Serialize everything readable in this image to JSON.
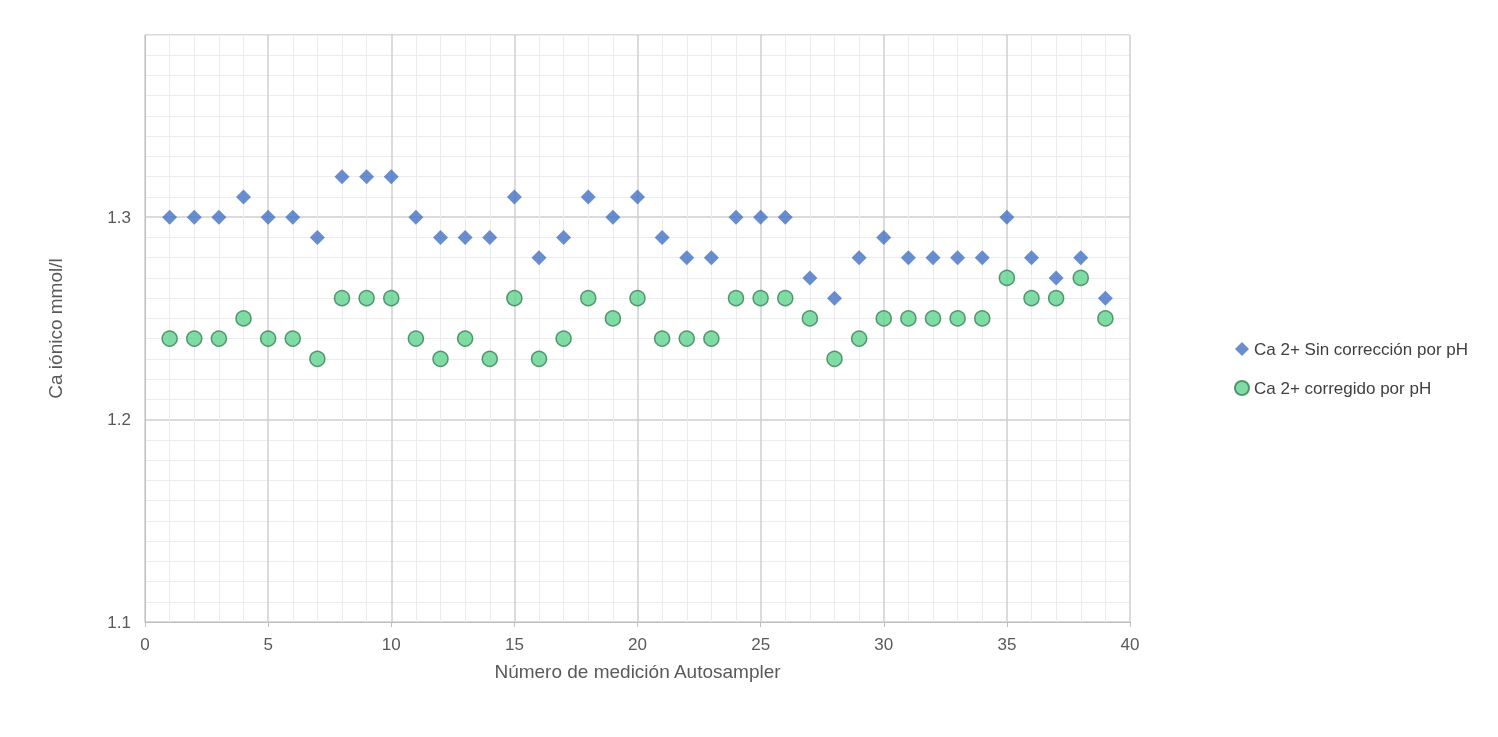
{
  "chart_data": {
    "type": "scatter",
    "xlabel": "Número de medición Autosampler",
    "ylabel": "Ca iónico mmol/l",
    "x": [
      1,
      2,
      3,
      4,
      5,
      6,
      7,
      8,
      9,
      10,
      11,
      12,
      13,
      14,
      15,
      16,
      17,
      18,
      19,
      20,
      21,
      22,
      23,
      24,
      25,
      26,
      27,
      28,
      29,
      30,
      31,
      32,
      33,
      34,
      35,
      36,
      37,
      38,
      39
    ],
    "series": [
      {
        "name": "Ca 2+ Sin corrección por pH",
        "color": "#4472c4",
        "marker": "diamond",
        "values": [
          1.3,
          1.3,
          1.3,
          1.31,
          1.3,
          1.3,
          1.29,
          1.32,
          1.32,
          1.32,
          1.3,
          1.29,
          1.29,
          1.29,
          1.31,
          1.28,
          1.29,
          1.31,
          1.3,
          1.31,
          1.29,
          1.28,
          1.28,
          1.3,
          1.3,
          1.3,
          1.27,
          1.26,
          1.28,
          1.29,
          1.28,
          1.28,
          1.28,
          1.28,
          1.3,
          1.28,
          1.27,
          1.28,
          1.26
        ]
      },
      {
        "name": "Ca 2+ corregido por pH",
        "color": "#5fd38d",
        "marker": "circle",
        "values": [
          1.24,
          1.24,
          1.24,
          1.25,
          1.24,
          1.24,
          1.23,
          1.26,
          1.26,
          1.26,
          1.24,
          1.23,
          1.24,
          1.23,
          1.26,
          1.23,
          1.24,
          1.26,
          1.25,
          1.26,
          1.24,
          1.24,
          1.24,
          1.26,
          1.26,
          1.26,
          1.25,
          1.23,
          1.24,
          1.25,
          1.25,
          1.25,
          1.25,
          1.25,
          1.27,
          1.26,
          1.26,
          1.27,
          1.25
        ]
      }
    ],
    "xlim": [
      0,
      40
    ],
    "xticks": [
      0,
      5,
      10,
      15,
      20,
      25,
      30,
      35,
      40
    ],
    "ylim": [
      1.1,
      1.39
    ],
    "yticks": [
      1.1,
      1.2,
      1.3
    ],
    "grid": true,
    "legend": "right"
  }
}
